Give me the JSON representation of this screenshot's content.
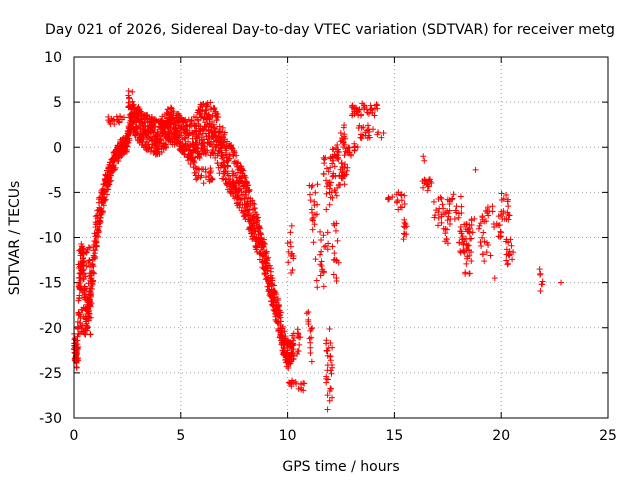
{
  "chart_data": {
    "type": "scatter",
    "title": "Day 021 of 2026, Sidereal Day-to-day VTEC variation (SDTVAR) for receiver metg",
    "xlabel": "GPS time / hours",
    "ylabel": "SDTVAR / TECUs",
    "xlim": [
      0,
      25
    ],
    "ylim": [
      -30,
      10
    ],
    "xticks": [
      0,
      5,
      10,
      15,
      20,
      25
    ],
    "yticks": [
      -30,
      -25,
      -20,
      -15,
      -10,
      -5,
      0,
      5,
      10
    ],
    "xtick_labels": [
      "0",
      "5",
      "10",
      "15",
      "20",
      "25"
    ],
    "ytick_labels": [
      "-30",
      "-25",
      "-20",
      "-15",
      "-10",
      "-5",
      "0",
      "5",
      "10"
    ],
    "grid": true,
    "marker": "plus",
    "color": "#ff0000",
    "series": [
      {
        "name": "SDTVAR",
        "trace_anchors": [
          [
            0.0,
            -22.0
          ],
          [
            0.15,
            -23.5
          ],
          [
            0.25,
            -16.0
          ],
          [
            0.35,
            -12.0
          ],
          [
            0.45,
            -14.0
          ],
          [
            0.55,
            -19.5
          ],
          [
            0.7,
            -17.5
          ],
          [
            0.85,
            -15.0
          ],
          [
            1.0,
            -10.0
          ],
          [
            1.2,
            -7.0
          ],
          [
            1.4,
            -5.0
          ],
          [
            1.6,
            -3.5
          ],
          [
            1.8,
            -2.0
          ],
          [
            2.0,
            -1.0
          ],
          [
            2.2,
            0.0
          ],
          [
            2.5,
            0.5
          ],
          [
            2.7,
            3.5
          ],
          [
            3.0,
            2.5
          ],
          [
            3.5,
            1.5
          ],
          [
            4.0,
            1.0
          ],
          [
            4.5,
            2.5
          ],
          [
            5.0,
            1.5
          ],
          [
            5.5,
            0.5
          ],
          [
            6.0,
            2.0
          ],
          [
            6.5,
            2.0
          ],
          [
            7.0,
            -1.0
          ],
          [
            7.5,
            -3.0
          ],
          [
            8.0,
            -5.5
          ],
          [
            8.5,
            -9.0
          ],
          [
            9.0,
            -13.0
          ],
          [
            9.5,
            -18.0
          ],
          [
            9.8,
            -21.5
          ],
          [
            10.0,
            -23.0
          ],
          [
            10.3,
            -22.0
          ]
        ],
        "trace_spread": [
          [
            0.0,
            1.5
          ],
          [
            1.0,
            2.0
          ],
          [
            2.0,
            1.0
          ],
          [
            2.5,
            1.0
          ],
          [
            3.0,
            2.0
          ],
          [
            4.0,
            2.0
          ],
          [
            5.0,
            2.0
          ],
          [
            6.0,
            3.0
          ],
          [
            7.0,
            3.0
          ],
          [
            8.0,
            2.5
          ],
          [
            9.0,
            2.0
          ],
          [
            10.3,
            1.5
          ]
        ],
        "clusters": [
          [
            0.0,
            0.2,
            -24.0,
            -21.0,
            20
          ],
          [
            0.2,
            0.8,
            -21.0,
            -11.0,
            70
          ],
          [
            0.3,
            0.6,
            -12.0,
            -11.0,
            12
          ],
          [
            2.5,
            2.8,
            3.0,
            6.3,
            20
          ],
          [
            1.6,
            2.4,
            2.5,
            3.5,
            18
          ],
          [
            4.3,
            4.6,
            2.5,
            4.2,
            12
          ],
          [
            5.5,
            6.5,
            -4.0,
            -2.0,
            30
          ],
          [
            10.0,
            10.5,
            -26.5,
            -25.8,
            8
          ],
          [
            10.5,
            10.8,
            -27.0,
            -26.0,
            8
          ],
          [
            10.4,
            10.6,
            -23.0,
            -20.0,
            10
          ],
          [
            10.0,
            10.3,
            -15.0,
            -8.0,
            14
          ],
          [
            10.9,
            11.2,
            -24.0,
            -18.0,
            14
          ],
          [
            11.0,
            11.4,
            -11.0,
            -4.0,
            20
          ],
          [
            11.3,
            11.7,
            -16.0,
            -12.0,
            12
          ],
          [
            11.5,
            11.9,
            -12.0,
            -9.0,
            10
          ],
          [
            11.8,
            12.1,
            -30.0,
            -20.0,
            30
          ],
          [
            11.6,
            12.1,
            -7.0,
            -1.0,
            20
          ],
          [
            12.0,
            12.4,
            -6.0,
            0.0,
            30
          ],
          [
            12.1,
            12.4,
            -15.0,
            -7.0,
            14
          ],
          [
            12.3,
            12.7,
            -4.5,
            2.5,
            30
          ],
          [
            12.5,
            12.8,
            -3.5,
            -2.0,
            10
          ],
          [
            12.7,
            13.0,
            -1.0,
            0.0,
            10
          ],
          [
            13.0,
            13.6,
            3.5,
            5.0,
            24
          ],
          [
            13.3,
            13.9,
            1.0,
            2.5,
            16
          ],
          [
            13.7,
            14.2,
            3.5,
            4.8,
            14
          ],
          [
            13.1,
            13.4,
            -0.5,
            0.5,
            6
          ],
          [
            14.2,
            14.5,
            1.0,
            2.0,
            4
          ],
          [
            14.6,
            14.8,
            -6.5,
            -5.5,
            4
          ],
          [
            15.1,
            15.6,
            -7.0,
            -5.0,
            14
          ],
          [
            15.4,
            15.6,
            -10.5,
            -8.0,
            10
          ],
          [
            16.3,
            16.8,
            -5.0,
            -3.5,
            14
          ],
          [
            16.8,
            17.6,
            -9.0,
            -5.5,
            24
          ],
          [
            17.3,
            17.6,
            -11.0,
            -9.0,
            8
          ],
          [
            17.5,
            18.2,
            -8.0,
            -5.0,
            16
          ],
          [
            18.0,
            18.6,
            -12.0,
            -8.5,
            36
          ],
          [
            18.3,
            18.6,
            -14.5,
            -11.0,
            10
          ],
          [
            18.6,
            19.2,
            -9.5,
            -7.5,
            12
          ],
          [
            19.0,
            19.4,
            -13.0,
            -10.0,
            10
          ],
          [
            19.2,
            19.6,
            -8.5,
            -6.5,
            10
          ],
          [
            19.6,
            20.0,
            -10.0,
            -7.5,
            12
          ],
          [
            20.0,
            20.4,
            -8.0,
            -5.0,
            16
          ],
          [
            20.2,
            20.6,
            -13.0,
            -10.0,
            18
          ],
          [
            21.8,
            21.95,
            -16.0,
            -14.0,
            6
          ]
        ],
        "points": [
          [
            16.35,
            -1.0
          ],
          [
            16.4,
            -1.5
          ],
          [
            18.8,
            -2.5
          ],
          [
            16.5,
            -4.0
          ],
          [
            17.6,
            -8.5
          ],
          [
            19.5,
            -12.0
          ],
          [
            19.7,
            -14.5
          ],
          [
            20.3,
            -6.0
          ],
          [
            12.1,
            -11.0
          ],
          [
            10.2,
            -26.0
          ],
          [
            13.8,
            2.0
          ],
          [
            14.0,
            2.0
          ],
          [
            22.8,
            -15.0
          ],
          [
            21.8,
            -13.5
          ],
          [
            14.9,
            -5.5
          ]
        ]
      }
    ]
  }
}
